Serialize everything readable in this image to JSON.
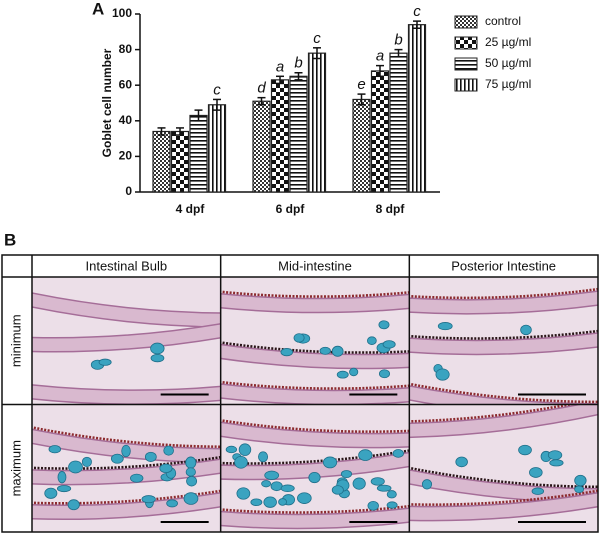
{
  "chart_data": {
    "type": "bar",
    "panel_label": "A",
    "ylabel": "Goblet cell number",
    "categories": [
      "4 dpf",
      "6 dpf",
      "8 dpf"
    ],
    "series": [
      {
        "name": "control",
        "pattern": "fine-check",
        "color": "#222222",
        "values": [
          34,
          51,
          52
        ],
        "errors": [
          2,
          2,
          3
        ],
        "annotations": [
          null,
          "d",
          "e"
        ]
      },
      {
        "name": "25 µg/ml",
        "pattern": "check",
        "color": "#222222",
        "values": [
          34,
          63,
          68
        ],
        "errors": [
          2,
          2,
          3
        ],
        "annotations": [
          null,
          "a",
          "a"
        ]
      },
      {
        "name": "50 µg/ml",
        "pattern": "hlines",
        "color": "#222222",
        "values": [
          43,
          65,
          78
        ],
        "errors": [
          3,
          2,
          2
        ],
        "annotations": [
          null,
          "b",
          "b"
        ]
      },
      {
        "name": "75 µg/ml",
        "pattern": "vlines",
        "color": "#222222",
        "values": [
          49,
          78,
          94
        ],
        "errors": [
          3,
          3,
          2
        ],
        "annotations": [
          "c",
          "c",
          "c"
        ]
      }
    ],
    "ylim": [
      0,
      100
    ],
    "yticks": [
      0,
      20,
      40,
      60,
      80,
      100
    ],
    "grid": false,
    "legend": "right"
  },
  "panel_b": {
    "label": "B",
    "columns": [
      "Intestinal Bulb",
      "Mid-intestine",
      "Posterior Intestine"
    ],
    "rows": [
      "minimum",
      "maximum"
    ]
  }
}
